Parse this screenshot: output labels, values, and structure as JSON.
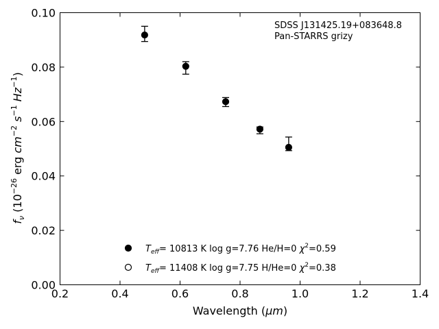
{
  "chart_data": {
    "type": "scatter",
    "title": "",
    "xlabel_text": "Wavelength (",
    "xlabel_unit": "μm",
    "xlabel_close": ")",
    "ylabel": "f_ν (10^-26 erg cm^-2 s^-1 Hz^-1)",
    "xlim": [
      0.2,
      1.4
    ],
    "ylim": [
      0.0,
      0.1
    ],
    "x_ticks": [
      0.2,
      0.4,
      0.6,
      0.8,
      1.0,
      1.2,
      1.4
    ],
    "x_tick_labels": [
      "0.2",
      "0.4",
      "0.6",
      "0.8",
      "1.0",
      "1.2",
      "1.4"
    ],
    "y_ticks": [
      0.0,
      0.02,
      0.04,
      0.06,
      0.08,
      0.1
    ],
    "y_tick_labels": [
      "0.00",
      "0.02",
      "0.04",
      "0.06",
      "0.08",
      "0.10"
    ],
    "grid": false,
    "annotation": [
      "SDSS J131425.19+083648.8",
      "Pan-STARRS grizy"
    ],
    "observations": {
      "x": [
        0.482,
        0.619,
        0.752,
        0.866,
        0.962
      ],
      "y": [
        0.0922,
        0.0808,
        0.0677,
        0.0571,
        0.0515
      ],
      "err_low": [
        0.0028,
        0.0034,
        0.0022,
        0.0016,
        0.0022
      ],
      "err_high": [
        0.0028,
        0.0012,
        0.0011,
        0.0009,
        0.0028
      ]
    },
    "series": [
      {
        "marker": "filled-circle",
        "color": "#000000",
        "x": [
          0.482,
          0.619,
          0.752,
          0.866,
          0.962
        ],
        "y": [
          0.0918,
          0.0803,
          0.0673,
          0.0572,
          0.0505
        ]
      },
      {
        "marker": "open-circle",
        "color": "#000000",
        "x": [],
        "y": []
      }
    ],
    "legend": {
      "placement": "lower-center",
      "entries": [
        {
          "marker": "filled-circle",
          "teff": "10813",
          "logg": "7.76",
          "comp": "He/H=0",
          "chi2": "0.59"
        },
        {
          "marker": "open-circle",
          "teff": "11408",
          "logg": "7.75",
          "comp": "H/He=0",
          "chi2": "0.38"
        }
      ]
    }
  }
}
